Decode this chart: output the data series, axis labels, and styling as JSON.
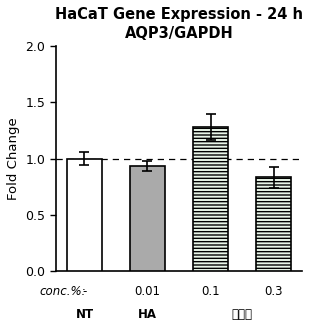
{
  "title_line1": "HaCaT Gene Expression - 24 h",
  "title_line2": "AQP3/GAPDH",
  "ylabel": "Fold Change",
  "categories": [
    "NT",
    "HA",
    "0.1",
    "0.3"
  ],
  "conc_labels": [
    "-",
    "0.01",
    "0.1",
    "0.3"
  ],
  "group_label_nt": "NT",
  "group_label_ha": "HA",
  "group_label_cn": "墨藻胶",
  "values": [
    1.0,
    0.935,
    1.28,
    0.835
  ],
  "errors": [
    0.055,
    0.042,
    0.115,
    0.095
  ],
  "ylim": [
    0.0,
    2.0
  ],
  "yticks": [
    0.0,
    0.5,
    1.0,
    1.5,
    2.0
  ],
  "dashed_line_y": 1.0,
  "bar_width": 0.55,
  "bar_colors": [
    "white",
    "#aaaaaa",
    "#e8f5e8",
    "#e8f5e8"
  ],
  "bar_hatches": [
    "",
    "",
    "-----",
    "-----"
  ],
  "bar_edgecolors": [
    "black",
    "black",
    "black",
    "black"
  ],
  "title_fontsize": 10.5,
  "axis_label_fontsize": 9.5,
  "tick_fontsize": 9,
  "annot_fontsize": 8.5,
  "conc_label_fontstyle": "italic",
  "figsize": [
    3.09,
    3.31
  ],
  "dpi": 100
}
